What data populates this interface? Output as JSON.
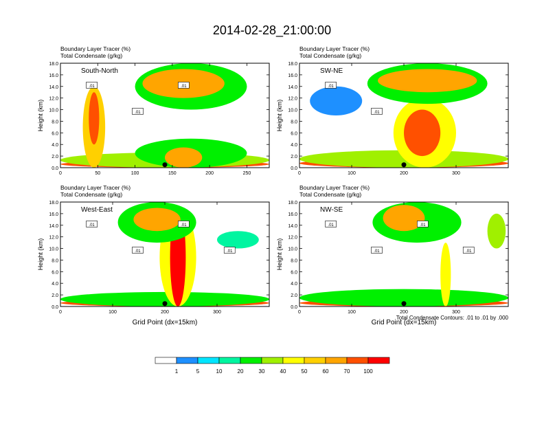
{
  "figure": {
    "title": "2014-02-28_21:00:00",
    "contour_note": "Total Condensate Contours: .01 to .01 by .000"
  },
  "colors": {
    "background": "#ffffff",
    "axis": "#000000",
    "contour_line": "#000000",
    "levels": [
      "#ffffff",
      "#1e90ff",
      "#00e5ff",
      "#00f5a0",
      "#00f000",
      "#a0f000",
      "#ffff00",
      "#ffd000",
      "#ffa500",
      "#ff5000",
      "#ff0000"
    ]
  },
  "colorbar": {
    "labels": [
      "1",
      "5",
      "10",
      "20",
      "30",
      "40",
      "50",
      "60",
      "70",
      "100"
    ]
  },
  "chart_data": [
    {
      "type": "heatmap",
      "panel_label": "South-North",
      "title_lines": [
        "Boundary Layer Tracer   (%)",
        "Total Condensate   (g/kg)"
      ],
      "xlabel": "",
      "ylabel": "Height (km)",
      "xlim": [
        0,
        280
      ],
      "ylim": [
        0,
        18
      ],
      "xticks": [
        "0",
        "50",
        "100",
        "150",
        "200",
        "250"
      ],
      "yticks": [
        "0.0",
        "2.0",
        "4.0",
        "6.0",
        "8.0",
        "10.0",
        "12.0",
        "14.0",
        "16.0",
        "18.0"
      ],
      "contour_labels": [
        ".01",
        ".01",
        ".01"
      ],
      "marker_x": 140,
      "features": [
        {
          "x0": 0,
          "x1": 280,
          "z0": 0,
          "z1": 1.2,
          "level": 9
        },
        {
          "x0": 0,
          "x1": 280,
          "z0": 0,
          "z1": 2.6,
          "level": 5
        },
        {
          "x0": 30,
          "x1": 60,
          "z0": 0,
          "z1": 14,
          "level": 7
        },
        {
          "x0": 38,
          "x1": 52,
          "z0": 4,
          "z1": 13,
          "level": 9
        },
        {
          "x0": 100,
          "x1": 250,
          "z0": 0,
          "z1": 5,
          "level": 4
        },
        {
          "x0": 140,
          "x1": 190,
          "z0": 0,
          "z1": 3.5,
          "level": 8
        },
        {
          "x0": 100,
          "x1": 250,
          "z0": 10,
          "z1": 18,
          "level": 4
        },
        {
          "x0": 110,
          "x1": 220,
          "z0": 12,
          "z1": 17,
          "level": 8
        }
      ]
    },
    {
      "type": "heatmap",
      "panel_label": "SW-NE",
      "title_lines": [
        "Boundary Layer Tracer   (%)",
        "Total Condensate   (g/kg)"
      ],
      "xlabel": "",
      "ylabel": "Height (km)",
      "xlim": [
        0,
        400
      ],
      "ylim": [
        0,
        18
      ],
      "xticks": [
        "0",
        "100",
        "200",
        "300"
      ],
      "yticks": [
        "0.0",
        "2.0",
        "4.0",
        "6.0",
        "8.0",
        "10.0",
        "12.0",
        "14.0",
        "16.0",
        "18.0"
      ],
      "contour_labels": [
        ".01",
        ".01"
      ],
      "marker_x": 200,
      "features": [
        {
          "x0": 0,
          "x1": 400,
          "z0": 0,
          "z1": 1.5,
          "level": 9
        },
        {
          "x0": 0,
          "x1": 400,
          "z0": 0,
          "z1": 3,
          "level": 5
        },
        {
          "x0": 180,
          "x1": 300,
          "z0": 0,
          "z1": 12,
          "level": 6
        },
        {
          "x0": 200,
          "x1": 270,
          "z0": 2,
          "z1": 10,
          "level": 9
        },
        {
          "x0": 130,
          "x1": 360,
          "z0": 11,
          "z1": 18,
          "level": 4
        },
        {
          "x0": 150,
          "x1": 340,
          "z0": 13,
          "z1": 17,
          "level": 8
        },
        {
          "x0": 20,
          "x1": 120,
          "z0": 9,
          "z1": 14,
          "level": 1
        }
      ]
    },
    {
      "type": "heatmap",
      "panel_label": "West-East",
      "title_lines": [
        "Boundary Layer Tracer   (%)",
        "Total Condensate   (g/kg)"
      ],
      "xlabel": "Grid Point (dx=15km)",
      "ylabel": "Height (km)",
      "xlim": [
        0,
        400
      ],
      "ylim": [
        0,
        18
      ],
      "xticks": [
        "0",
        "100",
        "200",
        "300"
      ],
      "yticks": [
        "0.0",
        "2.0",
        "4.0",
        "6.0",
        "8.0",
        "10.0",
        "12.0",
        "14.0",
        "16.0",
        "18.0"
      ],
      "contour_labels": [
        ".01",
        ".01",
        ".01",
        ".01"
      ],
      "marker_x": 200,
      "features": [
        {
          "x0": 0,
          "x1": 400,
          "z0": 0,
          "z1": 1.2,
          "level": 9
        },
        {
          "x0": 0,
          "x1": 400,
          "z0": 0,
          "z1": 2.5,
          "level": 4
        },
        {
          "x0": 190,
          "x1": 260,
          "z0": 0,
          "z1": 17,
          "level": 6
        },
        {
          "x0": 210,
          "x1": 240,
          "z0": 0,
          "z1": 17,
          "level": 10
        },
        {
          "x0": 110,
          "x1": 260,
          "z0": 11,
          "z1": 18,
          "level": 4
        },
        {
          "x0": 140,
          "x1": 230,
          "z0": 13,
          "z1": 17,
          "level": 8
        },
        {
          "x0": 300,
          "x1": 380,
          "z0": 10,
          "z1": 13,
          "level": 3
        }
      ]
    },
    {
      "type": "heatmap",
      "panel_label": "NW-SE",
      "title_lines": [
        "Boundary Layer Tracer   (%)",
        "Total Condensate   (g/kg)"
      ],
      "xlabel": "Grid Point (dx=15km)",
      "ylabel": "Height (km)",
      "xlim": [
        0,
        400
      ],
      "ylim": [
        0,
        18
      ],
      "xticks": [
        "0",
        "100",
        "200",
        "300"
      ],
      "yticks": [
        "0.0",
        "2.0",
        "4.0",
        "6.0",
        "8.0",
        "10.0",
        "12.0",
        "14.0",
        "16.0",
        "18.0"
      ],
      "contour_labels": [
        ".01",
        ".01",
        ".01",
        ".01"
      ],
      "marker_x": 200,
      "features": [
        {
          "x0": 0,
          "x1": 400,
          "z0": 0,
          "z1": 1.2,
          "level": 9
        },
        {
          "x0": 0,
          "x1": 400,
          "z0": 0,
          "z1": 3,
          "level": 4
        },
        {
          "x0": 140,
          "x1": 310,
          "z0": 11,
          "z1": 18,
          "level": 4
        },
        {
          "x0": 160,
          "x1": 240,
          "z0": 13,
          "z1": 17.5,
          "level": 8
        },
        {
          "x0": 270,
          "x1": 290,
          "z0": 0,
          "z1": 11,
          "level": 6
        },
        {
          "x0": 360,
          "x1": 395,
          "z0": 10,
          "z1": 16,
          "level": 5
        }
      ]
    }
  ]
}
